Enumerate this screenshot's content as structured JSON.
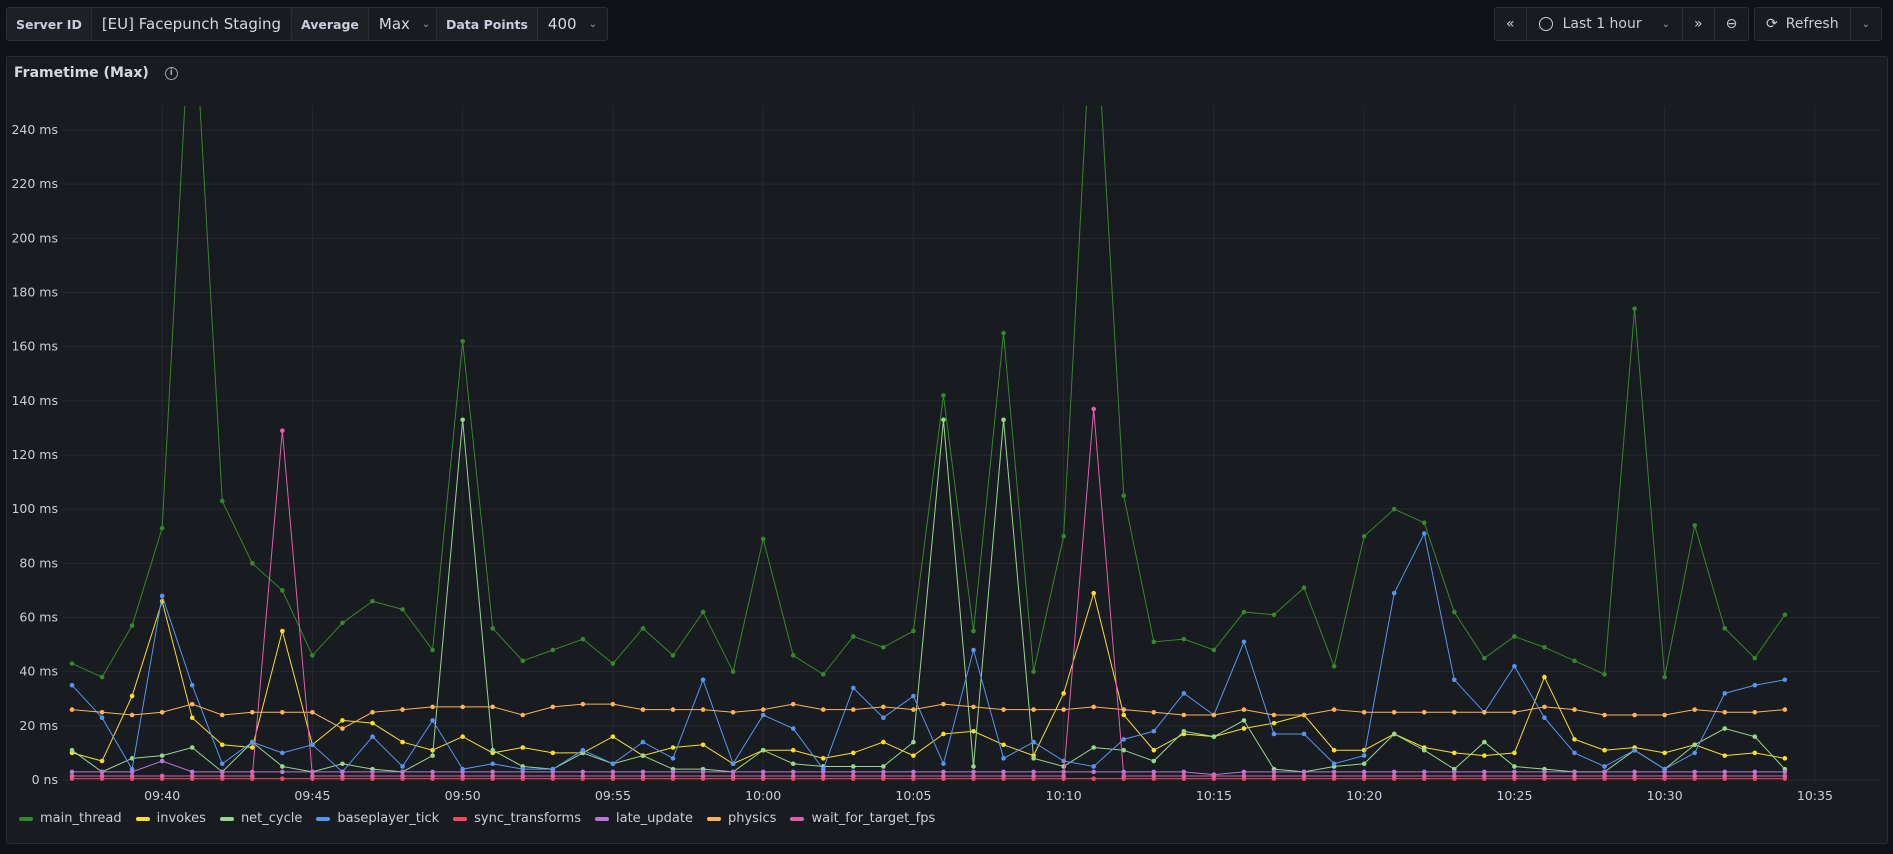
{
  "toolbar": {
    "server_label": "Server ID",
    "server_value": "[EU] Facepunch Staging",
    "average_label": "Average",
    "average_value": "Max",
    "points_label": "Data Points",
    "points_value": "400",
    "time_range": "Last 1 hour",
    "refresh_label": "Refresh"
  },
  "panel": {
    "title": "Frametime (Max)"
  },
  "chart_data": {
    "type": "line",
    "title": "Frametime (Max)",
    "ylabel": "",
    "xlabel": "",
    "ylim": [
      0,
      250
    ],
    "y_ticks": [
      0,
      20,
      40,
      60,
      80,
      100,
      120,
      140,
      160,
      180,
      200,
      220,
      240
    ],
    "y_tick_labels": [
      "0 ns",
      "20 ms",
      "40 ms",
      "60 ms",
      "80 ms",
      "100 ms",
      "120 ms",
      "140 ms",
      "160 ms",
      "180 ms",
      "200 ms",
      "220 ms",
      "240 ms"
    ],
    "x_start": "09:37",
    "x_step_minutes": 1,
    "x_ticks": [
      "09:40",
      "09:45",
      "09:50",
      "09:55",
      "10:00",
      "10:05",
      "10:10",
      "10:15",
      "10:20",
      "10:25",
      "10:30",
      "10:35"
    ],
    "legend_position": "bottom-left",
    "grid": true,
    "series": [
      {
        "name": "main_thread",
        "color": "#37872d",
        "values": [
          43,
          38,
          57,
          93,
          300,
          103,
          80,
          70,
          46,
          58,
          66,
          63,
          48,
          162,
          56,
          44,
          48,
          52,
          43,
          56,
          46,
          62,
          40,
          89,
          46,
          39,
          53,
          49,
          55,
          142,
          55,
          165,
          40,
          90,
          300,
          105,
          51,
          52,
          48,
          62,
          61,
          71,
          42,
          90,
          100,
          95,
          62,
          45,
          53,
          49,
          44,
          39,
          174,
          38,
          94,
          56,
          45,
          61
        ]
      },
      {
        "name": "invokes",
        "color": "#fade2a",
        "values": [
          10,
          7,
          31,
          66,
          23,
          13,
          12,
          55,
          13,
          22,
          21,
          14,
          11,
          16,
          10,
          12,
          10,
          10,
          16,
          9,
          12,
          13,
          6,
          11,
          11,
          8,
          10,
          14,
          9,
          17,
          18,
          13,
          9,
          32,
          69,
          24,
          11,
          17,
          16,
          19,
          21,
          24,
          11,
          11,
          17,
          12,
          10,
          9,
          10,
          38,
          15,
          11,
          12,
          10,
          13,
          9,
          10,
          8
        ]
      },
      {
        "name": "net_cycle",
        "color": "#96d98d",
        "values": [
          11,
          3,
          8,
          9,
          12,
          3,
          14,
          5,
          3,
          6,
          4,
          3,
          9,
          133,
          11,
          5,
          4,
          10,
          6,
          9,
          4,
          4,
          3,
          11,
          6,
          5,
          5,
          5,
          14,
          133,
          5,
          133,
          8,
          5,
          12,
          11,
          7,
          18,
          16,
          22,
          4,
          3,
          5,
          6,
          17,
          11,
          4,
          14,
          5,
          4,
          3,
          3,
          11,
          4,
          13,
          19,
          16,
          4
        ]
      },
      {
        "name": "baseplayer_tick",
        "color": "#5794f2",
        "values": [
          35,
          23,
          4,
          68,
          35,
          6,
          14,
          10,
          13,
          3,
          16,
          5,
          22,
          4,
          6,
          4,
          4,
          11,
          6,
          14,
          8,
          37,
          6,
          24,
          19,
          4,
          34,
          23,
          31,
          6,
          48,
          8,
          14,
          7,
          5,
          15,
          18,
          32,
          24,
          51,
          17,
          17,
          6,
          9,
          69,
          91,
          37,
          25,
          42,
          23,
          10,
          5,
          11,
          4,
          10,
          32,
          35,
          37
        ]
      },
      {
        "name": "sync_transforms",
        "color": "#f2495c",
        "values": [
          0.5,
          0.5,
          0.5,
          0.5,
          0.5,
          0.5,
          0.5,
          0.5,
          0.5,
          0.5,
          0.5,
          0.5,
          0.5,
          0.5,
          0.5,
          0.5,
          0.5,
          0.5,
          0.5,
          0.5,
          0.5,
          0.5,
          0.5,
          0.5,
          0.5,
          0.5,
          0.5,
          0.5,
          0.5,
          0.5,
          0.5,
          0.5,
          0.5,
          0.5,
          0.5,
          0.5,
          0.5,
          0.5,
          0.5,
          0.5,
          0.5,
          0.5,
          0.5,
          0.5,
          0.5,
          0.5,
          0.5,
          0.5,
          0.5,
          0.5,
          0.5,
          0.5,
          0.5,
          0.5,
          0.5,
          0.5,
          0.5,
          0.5
        ]
      },
      {
        "name": "late_update",
        "color": "#b877d9",
        "values": [
          3,
          3,
          3,
          7,
          3,
          3,
          3,
          3,
          3,
          3,
          3,
          3,
          3,
          3,
          3,
          3,
          3,
          3,
          3,
          3,
          3,
          3,
          3,
          3,
          3,
          3,
          3,
          3,
          3,
          3,
          3,
          3,
          3,
          3,
          3,
          3,
          3,
          3,
          2,
          3,
          3,
          3,
          3,
          3,
          3,
          3,
          3,
          3,
          3,
          3,
          3,
          3,
          3,
          3,
          3,
          3,
          3,
          3
        ]
      },
      {
        "name": "physics",
        "color": "#ffb357",
        "values": [
          26,
          25,
          24,
          25,
          28,
          24,
          25,
          25,
          25,
          19,
          25,
          26,
          27,
          27,
          27,
          24,
          27,
          28,
          28,
          26,
          26,
          26,
          25,
          26,
          28,
          26,
          26,
          27,
          26,
          28,
          27,
          26,
          26,
          26,
          27,
          26,
          25,
          24,
          24,
          26,
          24,
          24,
          26,
          25,
          25,
          25,
          25,
          25,
          25,
          27,
          26,
          24,
          24,
          24,
          26,
          25,
          25,
          26
        ]
      },
      {
        "name": "wait_for_target_fps",
        "color": "#e05fab",
        "values": [
          1.5,
          1.5,
          1.5,
          1.5,
          1.5,
          1.5,
          1.5,
          129,
          1.5,
          1.5,
          1.5,
          1.5,
          1.5,
          1.5,
          1.5,
          1.5,
          1.5,
          1.5,
          1.5,
          1.5,
          1.5,
          1.5,
          1.5,
          1.5,
          1.5,
          1.5,
          1.5,
          1.5,
          1.5,
          1.5,
          1.5,
          1.5,
          1.5,
          1.5,
          137,
          1.5,
          1.5,
          1.5,
          1.5,
          1.5,
          1.5,
          1.5,
          1.5,
          1.5,
          1.5,
          1.5,
          1.5,
          1.5,
          1.5,
          1.5,
          1.5,
          1.5,
          1.5,
          1.5,
          1.5,
          1.5,
          1.5,
          1.5
        ]
      }
    ]
  }
}
